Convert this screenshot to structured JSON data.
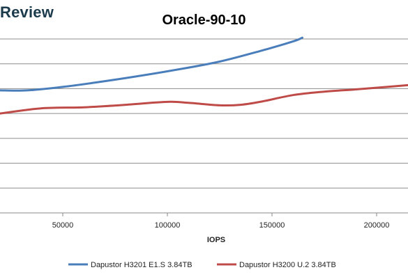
{
  "brand": "Review",
  "chart_data": {
    "type": "line",
    "title": "Oracle-90-10",
    "xlabel": "IOPS",
    "ylabel": "",
    "xlim": [
      20000,
      215000
    ],
    "ylim": [
      0,
      7
    ],
    "x_ticks": [
      50000,
      100000,
      150000,
      200000
    ],
    "x_tick_labels": [
      "50000",
      "100000",
      "150000",
      "200000"
    ],
    "y_gridlines": [
      0,
      1,
      2,
      3,
      4,
      5,
      6,
      7
    ],
    "grid": true,
    "legend_position": "bottom",
    "series": [
      {
        "name": "Dapustor H3201 E1.S 3.84TB",
        "color": "#4a7ebb",
        "x": [
          20000,
          33000,
          50000,
          65000,
          85000,
          105000,
          125000,
          145000,
          160000,
          164500
        ],
        "y": [
          4.93,
          4.93,
          5.07,
          5.24,
          5.49,
          5.77,
          6.09,
          6.53,
          6.9,
          7.05
        ]
      },
      {
        "name": "Dapustor H3200 U.2 3.84TB",
        "color": "#be4b48",
        "x": [
          20000,
          40000,
          60000,
          80000,
          100000,
          110000,
          125000,
          135000,
          145000,
          160000,
          175000,
          190000,
          205000,
          215000
        ],
        "y": [
          4.0,
          4.21,
          4.25,
          4.35,
          4.47,
          4.43,
          4.33,
          4.35,
          4.48,
          4.74,
          4.88,
          4.97,
          5.07,
          5.14
        ]
      }
    ]
  }
}
